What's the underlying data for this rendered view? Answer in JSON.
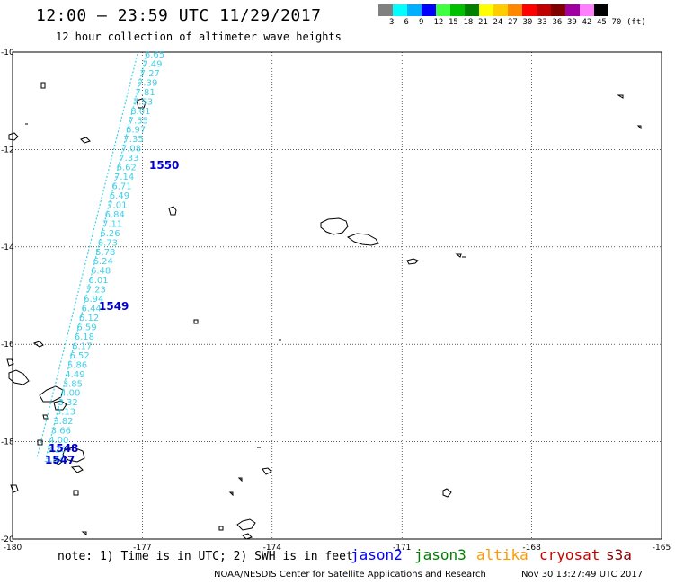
{
  "header": {
    "title": "12:00 – 23:59 UTC 11/29/2017",
    "subtitle": "12 hour collection of altimeter wave heights"
  },
  "color_scale": {
    "labels": [
      "3",
      "6",
      "9",
      "12",
      "15",
      "18",
      "21",
      "24",
      "27",
      "30",
      "33",
      "36",
      "39",
      "42",
      "45",
      "70",
      "(ft)"
    ],
    "colors": [
      "#808080",
      "#00ffff",
      "#00b0ff",
      "#0000ff",
      "#40ff40",
      "#00c000",
      "#008000",
      "#ffff00",
      "#ffcc00",
      "#ff8800",
      "#ff0000",
      "#c00000",
      "#800000",
      "#a000a0",
      "#ff80ff",
      "#000000"
    ]
  },
  "map": {
    "lon_ticks": [
      "-180",
      "-177",
      "-174",
      "-171",
      "-168",
      "-165"
    ],
    "lat_ticks": [
      "-10",
      "-12",
      "-14",
      "-16",
      "-18",
      "-20"
    ],
    "lon_range": [
      -180,
      -165
    ],
    "lat_range": [
      -20,
      -10
    ],
    "grid": true,
    "track_color": "#40d0e8",
    "pass_label_color": "#0000cc",
    "wave_heights": [
      "6.65",
      "7.49",
      "7.27",
      "7.39",
      "7.81",
      "7.53",
      "8.01",
      "7.35",
      "6.97",
      "7.35",
      "7.08",
      "7.33",
      "6.62",
      "7.14",
      "6.71",
      "6.49",
      "7.01",
      "6.84",
      "7.11",
      "6.26",
      "6.73",
      "5.78",
      "6.24",
      "6.48",
      "6.01",
      "7.23",
      "6.94",
      "6.44",
      "6.12",
      "6.59",
      "6.18",
      "6.17",
      "6.52",
      "5.86",
      "4.49",
      "3.85",
      "4.00",
      "3.32",
      "3.13",
      "3.82",
      "3.66",
      "4.00",
      "3.26",
      "3.93"
    ],
    "pass_labels": [
      "1550",
      "1549",
      "1548",
      "1547"
    ]
  },
  "footer": {
    "note": "note: 1) Time is in UTC; 2) SWH is in feet",
    "credit": "NOAA/NESDIS Center for Satellite Applications and Research",
    "timestamp": "Nov 30 13:27:49 UTC 2017"
  },
  "legend": [
    {
      "name": "jason2",
      "color": "#0000ff"
    },
    {
      "name": "jason3",
      "color": "#008000"
    },
    {
      "name": "altika",
      "color": "#ff9900"
    },
    {
      "name": "cryosat",
      "color": "#cc0000"
    },
    {
      "name": "s3a",
      "color": "#880000"
    }
  ]
}
